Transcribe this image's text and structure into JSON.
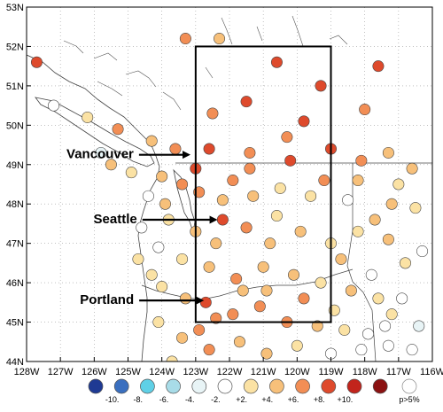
{
  "map": {
    "lon_ticks": [
      "128W",
      "127W",
      "126W",
      "125W",
      "124W",
      "123W",
      "122W",
      "121W",
      "120W",
      "119W",
      "118W",
      "117W",
      "116W"
    ],
    "lat_ticks": [
      "53N",
      "52N",
      "51N",
      "50N",
      "49N",
      "48N",
      "47N",
      "46N",
      "45N",
      "44N"
    ],
    "cities": [
      {
        "id": "vancouver",
        "name": "Vancouver",
        "lon": -123.1,
        "lat": 49.25
      },
      {
        "id": "seattle",
        "name": "Seattle",
        "lon": -122.3,
        "lat": 47.6
      },
      {
        "id": "portland",
        "name": "Portland",
        "lon": -122.7,
        "lat": 45.55
      }
    ]
  },
  "legend": {
    "labels": [
      "-10.",
      "-8.",
      "-6.",
      "-4.",
      "-2.",
      "+2.",
      "+4.",
      "+6.",
      "+8.",
      "+10."
    ],
    "colors": [
      "#1f3a93",
      "#3a6fbf",
      "#5fd0e6",
      "#a8dce8",
      "#e8f4f6",
      "#ffffff",
      "#fbe2a4",
      "#f7c07a",
      "#f28e55",
      "#de4a2c",
      "#c2241c",
      "#8b1212"
    ],
    "pvalue_label": "p>5%",
    "pvalue_color": "#ffffff"
  }
}
